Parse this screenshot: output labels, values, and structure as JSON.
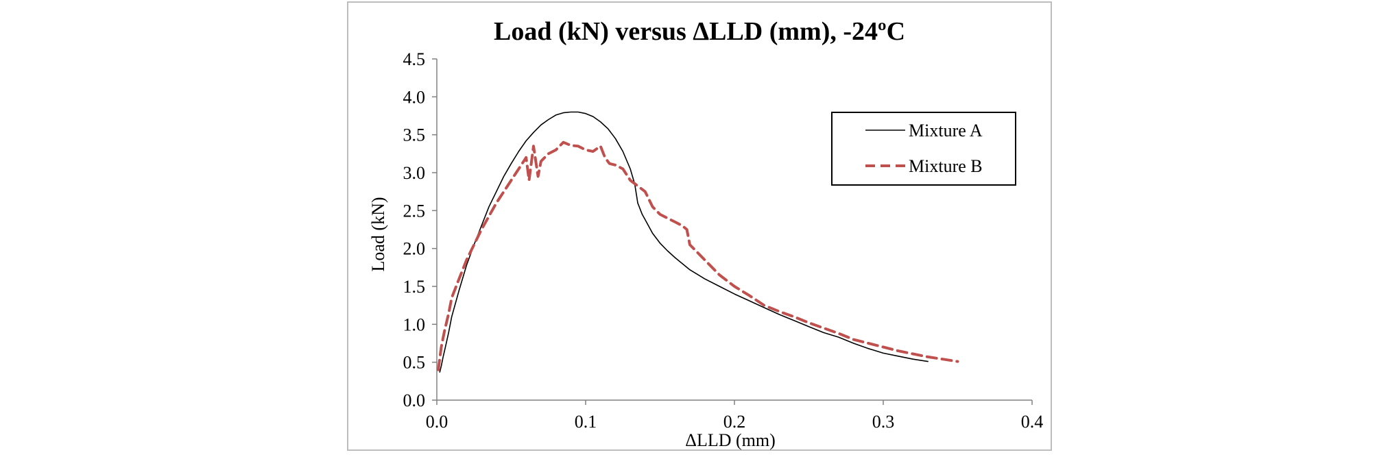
{
  "chart_data": {
    "type": "line",
    "title": "Load (kN) versus ΔLLD (mm), -24ºC",
    "xlabel": "ΔLLD (mm)",
    "ylabel": "Load (kN)",
    "xlim": [
      0,
      0.4
    ],
    "ylim": [
      0,
      4.5
    ],
    "xticks": [
      0,
      0.1,
      0.2,
      0.3,
      0.4
    ],
    "xtick_labels": [
      "0.0",
      "0.1",
      "0.2",
      "0.3",
      "0.4"
    ],
    "yticks": [
      0,
      0.5,
      1,
      1.5,
      2,
      2.5,
      3,
      3.5,
      4,
      4.5
    ],
    "ytick_labels": [
      "0.0",
      "0.5",
      "1.0",
      "1.5",
      "2.0",
      "2.5",
      "3.0",
      "3.5",
      "4.0",
      "4.5"
    ],
    "grid": false,
    "legend_position": "top-right",
    "series": [
      {
        "name": "Mixture A",
        "color": "#000000",
        "style": "solid",
        "x": [
          0.002,
          0.003,
          0.004,
          0.006,
          0.008,
          0.01,
          0.015,
          0.02,
          0.025,
          0.03,
          0.035,
          0.04,
          0.045,
          0.05,
          0.055,
          0.06,
          0.065,
          0.07,
          0.075,
          0.08,
          0.085,
          0.09,
          0.095,
          0.1,
          0.105,
          0.11,
          0.115,
          0.12,
          0.125,
          0.13,
          0.133,
          0.135,
          0.138,
          0.14,
          0.145,
          0.15,
          0.155,
          0.16,
          0.165,
          0.17,
          0.18,
          0.19,
          0.2,
          0.21,
          0.22,
          0.23,
          0.24,
          0.25,
          0.26,
          0.27,
          0.28,
          0.29,
          0.3,
          0.31,
          0.32,
          0.33
        ],
        "y": [
          0.37,
          0.45,
          0.55,
          0.72,
          0.9,
          1.1,
          1.45,
          1.78,
          2.05,
          2.3,
          2.55,
          2.75,
          2.95,
          3.12,
          3.28,
          3.42,
          3.53,
          3.63,
          3.7,
          3.76,
          3.79,
          3.8,
          3.8,
          3.78,
          3.74,
          3.67,
          3.58,
          3.45,
          3.28,
          3.05,
          2.85,
          2.6,
          2.45,
          2.38,
          2.2,
          2.07,
          1.97,
          1.88,
          1.8,
          1.72,
          1.6,
          1.5,
          1.4,
          1.31,
          1.22,
          1.13,
          1.05,
          0.97,
          0.89,
          0.83,
          0.75,
          0.68,
          0.62,
          0.58,
          0.54,
          0.51
        ]
      },
      {
        "name": "Mixture B",
        "color": "#c0504d",
        "style": "dashed",
        "x": [
          0.001,
          0.002,
          0.003,
          0.005,
          0.008,
          0.01,
          0.015,
          0.02,
          0.03,
          0.04,
          0.05,
          0.055,
          0.06,
          0.062,
          0.065,
          0.068,
          0.07,
          0.075,
          0.08,
          0.085,
          0.09,
          0.095,
          0.1,
          0.105,
          0.11,
          0.113,
          0.116,
          0.12,
          0.125,
          0.13,
          0.14,
          0.145,
          0.15,
          0.16,
          0.165,
          0.168,
          0.17,
          0.175,
          0.18,
          0.19,
          0.2,
          0.21,
          0.22,
          0.23,
          0.24,
          0.25,
          0.26,
          0.27,
          0.28,
          0.29,
          0.3,
          0.31,
          0.32,
          0.33,
          0.34,
          0.35
        ],
        "y": [
          0.4,
          0.55,
          0.7,
          0.9,
          1.15,
          1.35,
          1.6,
          1.85,
          2.25,
          2.6,
          2.9,
          3.05,
          3.2,
          2.9,
          3.35,
          2.95,
          3.15,
          3.25,
          3.3,
          3.4,
          3.36,
          3.35,
          3.3,
          3.28,
          3.35,
          3.2,
          3.12,
          3.1,
          3.05,
          2.9,
          2.75,
          2.55,
          2.45,
          2.35,
          2.3,
          2.25,
          2.05,
          1.95,
          1.85,
          1.65,
          1.5,
          1.38,
          1.25,
          1.17,
          1.1,
          1.02,
          0.95,
          0.88,
          0.8,
          0.75,
          0.7,
          0.65,
          0.61,
          0.57,
          0.54,
          0.51
        ]
      }
    ]
  }
}
